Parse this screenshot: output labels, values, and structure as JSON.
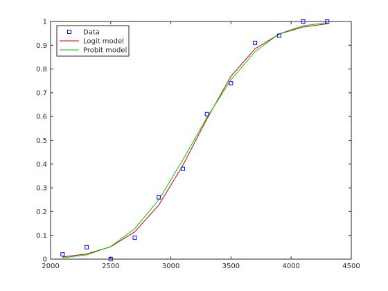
{
  "chart_data": {
    "type": "line",
    "title": "",
    "xlabel": "",
    "ylabel": "",
    "xlim": [
      2000,
      4500
    ],
    "ylim": [
      0,
      1
    ],
    "xticks": [
      2000,
      2500,
      3000,
      3500,
      4000,
      4500
    ],
    "yticks": [
      0,
      0.1,
      0.2,
      0.3,
      0.4,
      0.5,
      0.6,
      0.7,
      0.8,
      0.9,
      1
    ],
    "xtick_labels": [
      "2000",
      "2500",
      "3000",
      "3500",
      "4000",
      "4500"
    ],
    "ytick_labels": [
      "0",
      "0.1",
      "0.2",
      "0.3",
      "0.4",
      "0.5",
      "0.6",
      "0.7",
      "0.8",
      "0.9",
      "1"
    ],
    "grid": false,
    "legend_position": "top-left",
    "x": [
      2100,
      2300,
      2500,
      2700,
      2900,
      3100,
      3300,
      3500,
      3700,
      3900,
      4100,
      4300
    ],
    "series": [
      {
        "name": "Data",
        "style": "markers",
        "marker": "square",
        "color": "#0000ff",
        "values": [
          0.02,
          0.05,
          0.0,
          0.09,
          0.26,
          0.38,
          0.61,
          0.74,
          0.91,
          0.94,
          1.0,
          1.0
        ]
      },
      {
        "name": "Logit model",
        "style": "line",
        "color": "#cc0000",
        "values": [
          0.009,
          0.022,
          0.052,
          0.115,
          0.228,
          0.395,
          0.59,
          0.77,
          0.885,
          0.947,
          0.977,
          0.99
        ]
      },
      {
        "name": "Probit model",
        "style": "line",
        "color": "#00cc00",
        "values": [
          0.005,
          0.018,
          0.053,
          0.128,
          0.25,
          0.418,
          0.596,
          0.755,
          0.873,
          0.948,
          0.982,
          0.995
        ]
      }
    ]
  }
}
